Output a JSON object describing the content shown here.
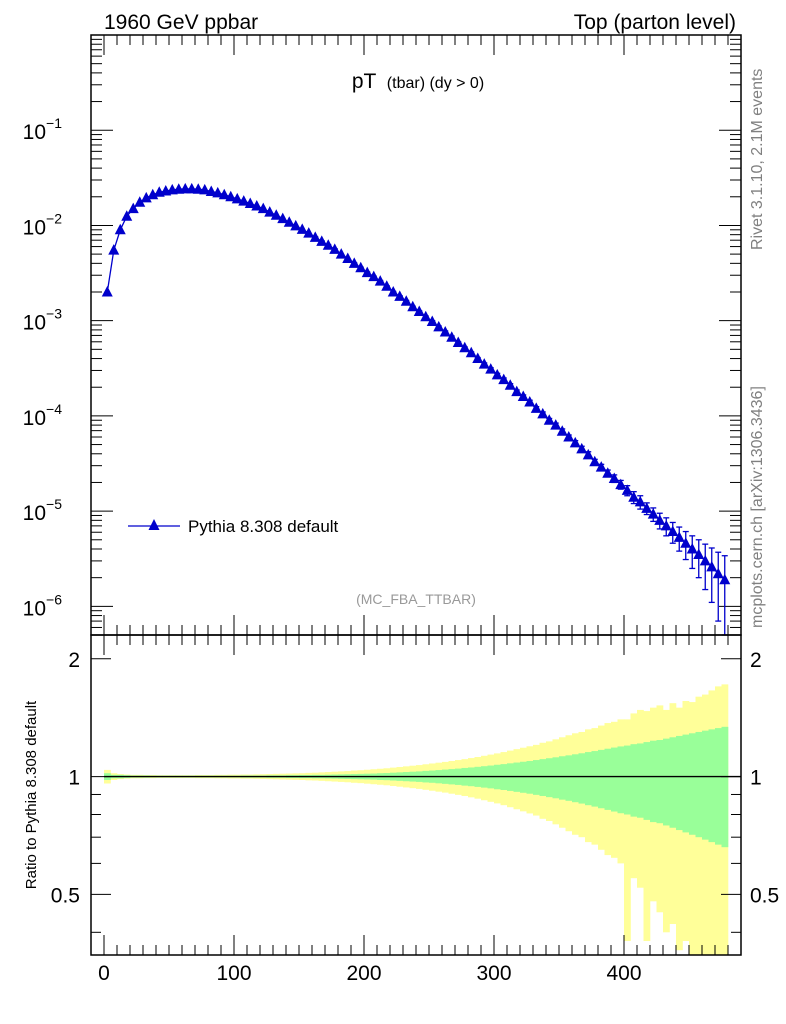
{
  "header": {
    "left": "1960 GeV ppbar",
    "right": "Top (parton level)"
  },
  "side_labels": {
    "rivet": "Rivet 3.1.10,  2.1M events",
    "mcplots": "mcplots.cern.ch [arXiv:1306.3436]"
  },
  "plot_title": {
    "main": "pT",
    "sub": "(tbar) (dy > 0)"
  },
  "analysis_label": "(MC_FBA_TTBAR)",
  "ratio_ylabel": "Ratio to Pythia 8.308 default",
  "colors": {
    "series": "#0000cc",
    "band_inner": "#99ff99",
    "band_outer": "#ffff99",
    "side_text": "#808080"
  },
  "chart_data": [
    {
      "type": "line",
      "scale": "log",
      "xlim": [
        -10,
        490
      ],
      "ylim": [
        5e-07,
        1
      ],
      "y_ticks": [
        {
          "value": 1e-06,
          "base": "10",
          "exp": "−6"
        },
        {
          "value": 1e-05,
          "base": "10",
          "exp": "−5"
        },
        {
          "value": 0.0001,
          "base": "10",
          "exp": "−4"
        },
        {
          "value": 0.001,
          "base": "10",
          "exp": "−3"
        },
        {
          "value": 0.01,
          "base": "10",
          "exp": "−2"
        },
        {
          "value": 0.1,
          "base": "10",
          "exp": "−1"
        }
      ],
      "legend": "bottom-left",
      "series": [
        {
          "name": "Pythia 8.308 default",
          "x": [
            2.5,
            7.5,
            12.5,
            17.5,
            22.5,
            27.5,
            32.5,
            37.5,
            42.5,
            47.5,
            52.5,
            57.5,
            62.5,
            67.5,
            72.5,
            77.5,
            82.5,
            87.5,
            92.5,
            97.5,
            102.5,
            107.5,
            112.5,
            117.5,
            122.5,
            127.5,
            132.5,
            137.5,
            142.5,
            147.5,
            152.5,
            157.5,
            162.5,
            167.5,
            172.5,
            177.5,
            182.5,
            187.5,
            192.5,
            197.5,
            202.5,
            207.5,
            212.5,
            217.5,
            222.5,
            227.5,
            232.5,
            237.5,
            242.5,
            247.5,
            252.5,
            257.5,
            262.5,
            267.5,
            272.5,
            277.5,
            282.5,
            287.5,
            292.5,
            297.5,
            302.5,
            307.5,
            312.5,
            317.5,
            322.5,
            327.5,
            332.5,
            337.5,
            342.5,
            347.5,
            352.5,
            357.5,
            362.5,
            367.5,
            372.5,
            377.5,
            382.5,
            387.5,
            392.5,
            397.5,
            402.5,
            407.5,
            412.5,
            417.5,
            422.5,
            427.5,
            432.5,
            437.5,
            442.5,
            447.5,
            452.5,
            457.5,
            462.5,
            467.5,
            472.5,
            477.5
          ],
          "y": [
            0.002,
            0.0055,
            0.009,
            0.0125,
            0.015,
            0.0175,
            0.0195,
            0.021,
            0.0223,
            0.023,
            0.0236,
            0.024,
            0.0242,
            0.0242,
            0.024,
            0.0236,
            0.0227,
            0.022,
            0.021,
            0.02,
            0.019,
            0.018,
            0.017,
            0.016,
            0.015,
            0.0138,
            0.0128,
            0.0118,
            0.0108,
            0.0099,
            0.0091,
            0.0083,
            0.0075,
            0.0068,
            0.0062,
            0.0056,
            0.005,
            0.0045,
            0.004,
            0.0036,
            0.0032,
            0.0029,
            0.0026,
            0.0023,
            0.002,
            0.0018,
            0.0016,
            0.0014,
            0.00125,
            0.0011,
            0.00098,
            0.00086,
            0.00076,
            0.00067,
            0.00059,
            0.00052,
            0.00046,
            0.0004,
            0.00035,
            0.00031,
            0.00027,
            0.00024,
            0.00021,
            0.00018,
            0.00016,
            0.00014,
            0.00012,
            0.000105,
            9e-05,
            8e-05,
            6.9e-05,
            6e-05,
            5.2e-05,
            4.5e-05,
            3.9e-05,
            3.3e-05,
            2.9e-05,
            2.5e-05,
            2.2e-05,
            1.9e-05,
            1.65e-05,
            1.4e-05,
            1.25e-05,
            1.07e-05,
            9.3e-06,
            8e-06,
            7e-06,
            6.1e-06,
            5.3e-06,
            4.6e-06,
            4e-06,
            3.5e-06,
            3e-06,
            2.6e-06,
            2.2e-06,
            1.9e-06
          ],
          "yerr": [
            2e-05,
            5e-05,
            8e-05,
            0.0001,
            0.0001,
            0.0001,
            0.0001,
            0.0001,
            0.0001,
            0.0001,
            0.0001,
            0.0001,
            0.0001,
            0.0001,
            0.0001,
            0.0001,
            0.0001,
            0.0001,
            0.0001,
            0.0001,
            0.0001,
            0.0001,
            0.0001,
            0.0001,
            0.0001,
            0.0001,
            0.0001,
            0.0001,
            0.0001,
            0.0001,
            0.0001,
            0.0001,
            0.0001,
            0.0001,
            0.0001,
            0.0001,
            5e-05,
            5e-05,
            5e-05,
            5e-05,
            5e-05,
            4e-05,
            4e-05,
            3e-05,
            3e-05,
            3e-05,
            3e-05,
            2e-05,
            2e-05,
            2e-05,
            2e-05,
            2e-05,
            2e-05,
            2e-05,
            1e-05,
            1e-05,
            1e-05,
            1e-05,
            1e-05,
            1e-05,
            1e-05,
            1e-05,
            8e-06,
            7e-06,
            6e-06,
            6e-06,
            5e-06,
            5e-06,
            4e-06,
            4e-06,
            4e-06,
            3e-06,
            3e-06,
            3e-06,
            3e-06,
            2e-06,
            2e-06,
            2e-06,
            2e-06,
            2e-06,
            2e-06,
            2e-06,
            2e-06,
            1.5e-06,
            1.5e-06,
            1.5e-06,
            1.5e-06,
            1.5e-06,
            1.5e-06,
            1.5e-06,
            1.5e-06,
            1.5e-06,
            1.5e-06,
            1.5e-06,
            1.5e-06,
            1.5e-06
          ]
        }
      ]
    },
    {
      "type": "area",
      "scale": "log",
      "xlim": [
        -10,
        490
      ],
      "ylim": [
        0.35,
        2.3
      ],
      "y_ticks": [
        {
          "value": 0.5,
          "label": "0.5"
        },
        {
          "value": 1,
          "label": "1"
        },
        {
          "value": 2,
          "label": "2"
        }
      ],
      "x_ticks": [
        {
          "value": 0,
          "label": "0"
        },
        {
          "value": 100,
          "label": "100"
        },
        {
          "value": 200,
          "label": "200"
        },
        {
          "value": 300,
          "label": "300"
        },
        {
          "value": 400,
          "label": "400"
        }
      ],
      "reference_line": 1,
      "bin_width": 5,
      "x_start": 0,
      "band_inner": [
        0.02,
        0.01,
        0.01,
        0.008,
        0.006,
        0.006,
        0.006,
        0.005,
        0.005,
        0.005,
        0.005,
        0.005,
        0.005,
        0.005,
        0.005,
        0.005,
        0.005,
        0.005,
        0.005,
        0.005,
        0.005,
        0.006,
        0.006,
        0.006,
        0.006,
        0.007,
        0.007,
        0.007,
        0.008,
        0.008,
        0.009,
        0.009,
        0.01,
        0.01,
        0.011,
        0.012,
        0.013,
        0.014,
        0.015,
        0.016,
        0.017,
        0.018,
        0.02,
        0.021,
        0.023,
        0.025,
        0.027,
        0.029,
        0.031,
        0.034,
        0.036,
        0.039,
        0.042,
        0.045,
        0.048,
        0.052,
        0.055,
        0.059,
        0.063,
        0.067,
        0.072,
        0.076,
        0.081,
        0.086,
        0.091,
        0.096,
        0.102,
        0.108,
        0.114,
        0.12,
        0.127,
        0.133,
        0.14,
        0.147,
        0.155,
        0.162,
        0.17,
        0.178,
        0.186,
        0.194,
        0.2,
        0.21,
        0.215,
        0.225,
        0.235,
        0.24,
        0.25,
        0.26,
        0.27,
        0.28,
        0.29,
        0.3,
        0.31,
        0.32,
        0.33,
        0.34
      ],
      "band_outer": [
        0.04,
        0.02,
        0.015,
        0.012,
        0.01,
        0.01,
        0.009,
        0.009,
        0.008,
        0.008,
        0.008,
        0.008,
        0.008,
        0.008,
        0.009,
        0.009,
        0.009,
        0.01,
        0.01,
        0.011,
        0.011,
        0.012,
        0.012,
        0.013,
        0.014,
        0.015,
        0.016,
        0.017,
        0.018,
        0.019,
        0.02,
        0.022,
        0.023,
        0.025,
        0.027,
        0.029,
        0.031,
        0.033,
        0.036,
        0.038,
        0.041,
        0.044,
        0.047,
        0.05,
        0.054,
        0.058,
        0.062,
        0.066,
        0.07,
        0.075,
        0.08,
        0.085,
        0.09,
        0.096,
        0.102,
        0.108,
        0.115,
        0.122,
        0.13,
        0.138,
        0.146,
        0.155,
        0.165,
        0.175,
        0.185,
        0.195,
        0.205,
        0.22,
        0.23,
        0.245,
        0.26,
        0.275,
        0.29,
        0.3,
        0.32,
        0.33,
        0.35,
        0.37,
        0.38,
        0.4,
        0.62,
        0.45,
        0.48,
        0.62,
        0.52,
        0.55,
        0.6,
        0.58,
        0.64,
        0.62,
        0.66,
        0.65,
        0.7,
        0.74,
        0.8,
        0.85
      ],
      "band_outer_hi": [
        0.04,
        0.02,
        0.015,
        0.012,
        0.01,
        0.01,
        0.009,
        0.009,
        0.008,
        0.008,
        0.008,
        0.008,
        0.008,
        0.008,
        0.009,
        0.009,
        0.009,
        0.01,
        0.01,
        0.011,
        0.011,
        0.012,
        0.012,
        0.013,
        0.014,
        0.015,
        0.016,
        0.017,
        0.018,
        0.019,
        0.02,
        0.022,
        0.023,
        0.025,
        0.027,
        0.029,
        0.031,
        0.033,
        0.036,
        0.038,
        0.041,
        0.044,
        0.047,
        0.05,
        0.054,
        0.058,
        0.062,
        0.066,
        0.07,
        0.075,
        0.08,
        0.085,
        0.09,
        0.096,
        0.102,
        0.108,
        0.115,
        0.122,
        0.13,
        0.138,
        0.146,
        0.155,
        0.165,
        0.175,
        0.185,
        0.195,
        0.205,
        0.22,
        0.23,
        0.245,
        0.26,
        0.275,
        0.29,
        0.3,
        0.32,
        0.33,
        0.35,
        0.37,
        0.38,
        0.4,
        0.4,
        0.45,
        0.48,
        0.47,
        0.5,
        0.52,
        0.48,
        0.54,
        0.5,
        0.56,
        0.55,
        0.6,
        0.62,
        0.66,
        0.7,
        0.72
      ]
    }
  ]
}
